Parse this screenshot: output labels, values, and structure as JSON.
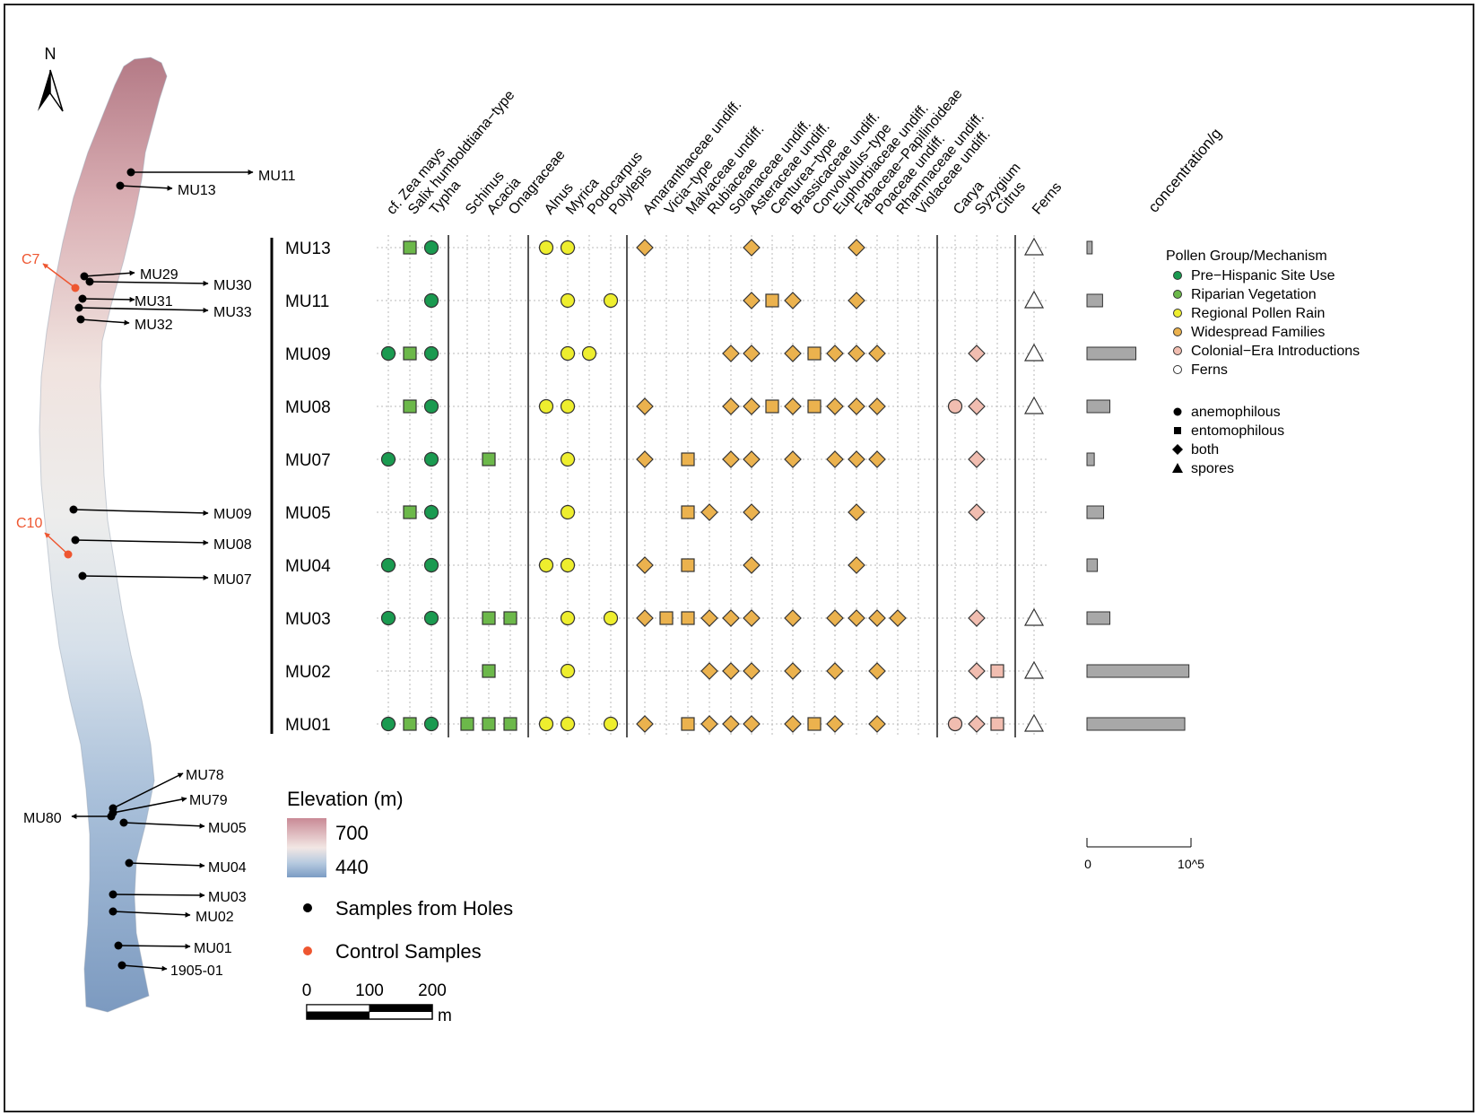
{
  "chart_data": {
    "type": "scatter",
    "samples": [
      "MU13",
      "MU11",
      "MU09",
      "MU08",
      "MU07",
      "MU05",
      "MU04",
      "MU03",
      "MU02",
      "MU01"
    ],
    "taxa": [
      "cf. Zea mays",
      "Salix humboldtiana−type",
      "Typha",
      "Schinus",
      "Acacia",
      "Onagraceae",
      "Alnus",
      "Myrica",
      "Podocarpus",
      "Polylepis",
      "Amaranthaceae undiff.",
      "Vicia−type",
      "Malvaceae undiff.",
      "Rubiaceae",
      "Solanaceae undiff.",
      "Asteraceae undiff.",
      "Centurea−type",
      "Brassicaceae undiff.",
      "Convolvulus−type",
      "Euphorbiaceae undiff.",
      "Fabaceae−Papilinoideae",
      "Poaceae undiff.",
      "Rhamnaceae undiff.",
      "Violaceae undiff.",
      "Carya",
      "Syzygium",
      "Citrus",
      "Ferns"
    ],
    "taxon_group": [
      "Pre−Hispanic Site Use",
      "Riparian Vegetation",
      "Pre−Hispanic Site Use",
      "Riparian Vegetation",
      "Riparian Vegetation",
      "Riparian Vegetation",
      "Regional Pollen Rain",
      "Regional Pollen Rain",
      "Regional Pollen Rain",
      "Regional Pollen Rain",
      "Widespread Families",
      "Widespread Families",
      "Widespread Families",
      "Widespread Families",
      "Widespread Families",
      "Widespread Families",
      "Widespread Families",
      "Widespread Families",
      "Widespread Families",
      "Widespread Families",
      "Widespread Families",
      "Widespread Families",
      "Widespread Families",
      "Widespread Families",
      "Colonial−Era Introductions",
      "Colonial−Era Introductions",
      "Colonial−Era Introductions",
      "Ferns"
    ],
    "taxon_mechanism": [
      "anemophilous",
      "entomophilous",
      "anemophilous",
      "entomophilous",
      "entomophilous",
      "entomophilous",
      "anemophilous",
      "anemophilous",
      "anemophilous",
      "anemophilous",
      "both",
      "entomophilous",
      "entomophilous",
      "both",
      "both",
      "both",
      "entomophilous",
      "both",
      "entomophilous",
      "both",
      "both",
      "both",
      "both",
      "both",
      "anemophilous",
      "both",
      "entomophilous",
      "spores"
    ],
    "presence": {
      "MU13": [
        "Salix humboldtiana−type",
        "Typha",
        "Alnus",
        "Myrica",
        "Amaranthaceae undiff.",
        "Asteraceae undiff.",
        "Fabaceae−Papilinoideae",
        "Ferns"
      ],
      "MU11": [
        "Typha",
        "Myrica",
        "Polylepis",
        "Asteraceae undiff.",
        "Centurea−type",
        "Brassicaceae undiff.",
        "Fabaceae−Papilinoideae",
        "Ferns"
      ],
      "MU09": [
        "cf. Zea mays",
        "Salix humboldtiana−type",
        "Typha",
        "Myrica",
        "Podocarpus",
        "Solanaceae undiff.",
        "Asteraceae undiff.",
        "Brassicaceae undiff.",
        "Convolvulus−type",
        "Euphorbiaceae undiff.",
        "Fabaceae−Papilinoideae",
        "Poaceae undiff.",
        "Syzygium",
        "Ferns"
      ],
      "MU08": [
        "Salix humboldtiana−type",
        "Typha",
        "Alnus",
        "Myrica",
        "Amaranthaceae undiff.",
        "Solanaceae undiff.",
        "Asteraceae undiff.",
        "Centurea−type",
        "Brassicaceae undiff.",
        "Convolvulus−type",
        "Euphorbiaceae undiff.",
        "Fabaceae−Papilinoideae",
        "Poaceae undiff.",
        "Carya",
        "Syzygium",
        "Ferns"
      ],
      "MU07": [
        "cf. Zea mays",
        "Typha",
        "Acacia",
        "Myrica",
        "Amaranthaceae undiff.",
        "Malvaceae undiff.",
        "Solanaceae undiff.",
        "Asteraceae undiff.",
        "Brassicaceae undiff.",
        "Euphorbiaceae undiff.",
        "Fabaceae−Papilinoideae",
        "Poaceae undiff.",
        "Syzygium"
      ],
      "MU05": [
        "Salix humboldtiana−type",
        "Typha",
        "Myrica",
        "Malvaceae undiff.",
        "Rubiaceae",
        "Asteraceae undiff.",
        "Fabaceae−Papilinoideae",
        "Syzygium"
      ],
      "MU04": [
        "cf. Zea mays",
        "Typha",
        "Alnus",
        "Myrica",
        "Amaranthaceae undiff.",
        "Malvaceae undiff.",
        "Asteraceae undiff.",
        "Fabaceae−Papilinoideae"
      ],
      "MU03": [
        "cf. Zea mays",
        "Typha",
        "Acacia",
        "Onagraceae",
        "Myrica",
        "Polylepis",
        "Amaranthaceae undiff.",
        "Vicia−type",
        "Malvaceae undiff.",
        "Rubiaceae",
        "Solanaceae undiff.",
        "Asteraceae undiff.",
        "Brassicaceae undiff.",
        "Euphorbiaceae undiff.",
        "Fabaceae−Papilinoideae",
        "Poaceae undiff.",
        "Rhamnaceae undiff.",
        "Syzygium",
        "Ferns"
      ],
      "MU02": [
        "Acacia",
        "Myrica",
        "Rubiaceae",
        "Solanaceae undiff.",
        "Asteraceae undiff.",
        "Brassicaceae undiff.",
        "Euphorbiaceae undiff.",
        "Poaceae undiff.",
        "Syzygium",
        "Citrus",
        "Ferns"
      ],
      "MU01": [
        "cf. Zea mays",
        "Salix humboldtiana−type",
        "Typha",
        "Schinus",
        "Acacia",
        "Onagraceae",
        "Alnus",
        "Myrica",
        "Polylepis",
        "Amaranthaceae undiff.",
        "Malvaceae undiff.",
        "Rubiaceae",
        "Solanaceae undiff.",
        "Asteraceae undiff.",
        "Brassicaceae undiff.",
        "Convolvulus−type",
        "Euphorbiaceae undiff.",
        "Poaceae undiff.",
        "Carya",
        "Syzygium",
        "Citrus",
        "Ferns"
      ]
    },
    "concentration_label": "concentration/g",
    "concentration_scale": [
      "0",
      "10^5"
    ],
    "concentration": {
      "MU13": 5000,
      "MU11": 15000,
      "MU09": 47000,
      "MU08": 22000,
      "MU07": 7000,
      "MU05": 16000,
      "MU04": 10000,
      "MU03": 22000,
      "MU02": 98000,
      "MU01": 94000
    },
    "legend": {
      "title": "Pollen Group/Mechanism",
      "groups": [
        {
          "name": "Pre−Hispanic Site Use",
          "color": "#1a9a50"
        },
        {
          "name": "Riparian Vegetation",
          "color": "#6cb84a"
        },
        {
          "name": "Regional Pollen Rain",
          "color": "#eeee2e"
        },
        {
          "name": "Widespread Families",
          "color": "#ebb24e"
        },
        {
          "name": "Colonial−Era Introductions",
          "color": "#f1bdb0"
        },
        {
          "name": "Ferns",
          "color": "#ffffff"
        }
      ],
      "mechanisms": [
        {
          "name": "anemophilous",
          "shape": "circle"
        },
        {
          "name": "entomophilous",
          "shape": "square"
        },
        {
          "name": "both",
          "shape": "diamond"
        },
        {
          "name": "spores",
          "shape": "triangle"
        }
      ]
    }
  },
  "map": {
    "north_label": "N",
    "elevation_title": "Elevation (m)",
    "elevation_max": "700",
    "elevation_min": "440",
    "elevation_colors": [
      "#c98a96",
      "#f2e7e4",
      "#b8cbe0",
      "#7b9cc4"
    ],
    "samples_holes_label": "Samples from Holes",
    "control_samples_label": "Control Samples",
    "hole_color": "#000000",
    "control_color": "#ee5630",
    "scale_ticks": [
      "0",
      "100",
      "200"
    ],
    "scale_unit": "m",
    "sample_labels": [
      "MU11",
      "MU13",
      "MU29",
      "MU30",
      "MU31",
      "MU33",
      "MU32",
      "MU09",
      "MU08",
      "MU07",
      "MU78",
      "MU79",
      "MU80",
      "MU05",
      "MU04",
      "MU03",
      "MU02",
      "MU01",
      "1905-01"
    ],
    "control_labels": [
      "C7",
      "C10"
    ]
  }
}
